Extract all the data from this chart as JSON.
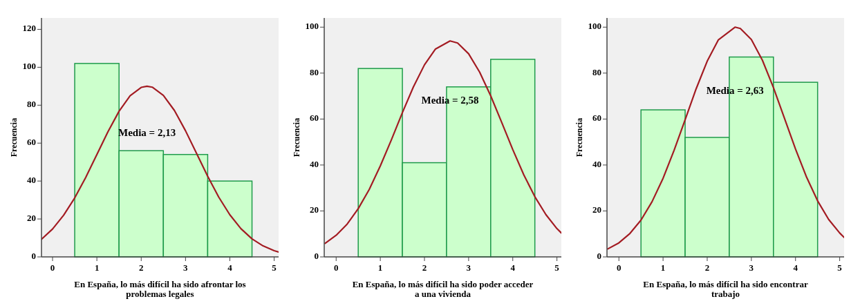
{
  "chart_data": [
    {
      "type": "histogram",
      "xlabel": "En España, lo más difícil ha sido afrontar los problemas legales",
      "ylabel": "Frecuencia",
      "bins": [
        0.5,
        1.5,
        2.5,
        3.5,
        4.5
      ],
      "values": [
        102,
        56,
        54,
        40
      ],
      "color": "#ccffcc",
      "xlim": [
        -0.25,
        5.1
      ],
      "xticks": [
        0,
        1,
        2,
        3,
        4,
        5
      ],
      "ylim": [
        0,
        126
      ],
      "yticks": [
        0,
        20,
        40,
        60,
        80,
        100,
        120
      ],
      "grid": false,
      "annotations": [
        "Media = 2,13"
      ],
      "series": [
        {
          "type": "line",
          "color": "#a31b22",
          "x": [
            -0.25,
            0,
            0.25,
            0.5,
            0.75,
            1,
            1.25,
            1.5,
            1.75,
            2,
            2.13,
            2.25,
            2.5,
            2.75,
            3,
            3.25,
            3.5,
            3.75,
            4,
            4.25,
            4.5,
            4.75,
            5,
            5.1
          ],
          "values": [
            9.3,
            14.7,
            22.0,
            31.1,
            42.0,
            54.0,
            66.0,
            76.8,
            85.0,
            89.4,
            90,
            89.5,
            85.2,
            77.2,
            66.5,
            54.5,
            42.5,
            31.5,
            22.2,
            14.9,
            9.5,
            5.8,
            3.3,
            2.6
          ]
        }
      ]
    },
    {
      "type": "histogram",
      "xlabel": "En España, lo más difícil ha sido poder acceder a una vivienda",
      "ylabel": "Frecuencia",
      "bins": [
        0.5,
        1.5,
        2.5,
        3.5,
        4.5
      ],
      "values": [
        82,
        41,
        74,
        86
      ],
      "color": "#ccffcc",
      "xlim": [
        -0.27,
        5.1
      ],
      "xticks": [
        0,
        1,
        2,
        3,
        4,
        5
      ],
      "ylim": [
        0,
        104
      ],
      "yticks": [
        0,
        20,
        40,
        60,
        80,
        100
      ],
      "grid": false,
      "annotations": [
        "Media = 2,58"
      ],
      "series": [
        {
          "type": "line",
          "color": "#a31b22",
          "x": [
            -0.25,
            0,
            0.25,
            0.5,
            0.75,
            1,
            1.25,
            1.5,
            1.75,
            2,
            2.25,
            2.58,
            2.75,
            3,
            3.25,
            3.5,
            3.75,
            4,
            4.25,
            4.5,
            4.75,
            5,
            5.1
          ],
          "values": [
            5.9,
            9.4,
            14.3,
            21.0,
            29.4,
            39.6,
            50.9,
            62.8,
            74.0,
            83.6,
            90.5,
            94,
            93.1,
            88.4,
            80.4,
            70.1,
            58.5,
            46.7,
            35.7,
            26.2,
            18.4,
            12.3,
            10.4
          ]
        }
      ]
    },
    {
      "type": "histogram",
      "xlabel": "En España, lo más difícil ha sido encontrar trabajo",
      "ylabel": "Frecuencia",
      "bins": [
        0.5,
        1.5,
        2.5,
        3.5,
        4.5
      ],
      "values": [
        64,
        52,
        87,
        76
      ],
      "color": "#ccffcc",
      "xlim": [
        -0.27,
        5.1
      ],
      "xticks": [
        0,
        1,
        2,
        3,
        4,
        5
      ],
      "ylim": [
        0,
        104
      ],
      "yticks": [
        0,
        20,
        40,
        60,
        80,
        100
      ],
      "grid": false,
      "annotations": [
        "Media = 2,63"
      ],
      "series": [
        {
          "type": "line",
          "color": "#a31b22",
          "x": [
            -0.25,
            0,
            0.25,
            0.5,
            0.75,
            1,
            1.25,
            1.5,
            1.75,
            2,
            2.25,
            2.63,
            2.75,
            3,
            3.25,
            3.5,
            3.75,
            4,
            4.25,
            4.5,
            4.75,
            5,
            5.1
          ],
          "values": [
            3.5,
            6.1,
            10.2,
            16.0,
            24.0,
            34.2,
            46.4,
            59.7,
            73.2,
            85.2,
            94.4,
            100,
            99.4,
            94.6,
            85.6,
            73.7,
            60.3,
            46.9,
            34.7,
            24.4,
            16.3,
            10.4,
            8.5
          ]
        }
      ]
    }
  ]
}
